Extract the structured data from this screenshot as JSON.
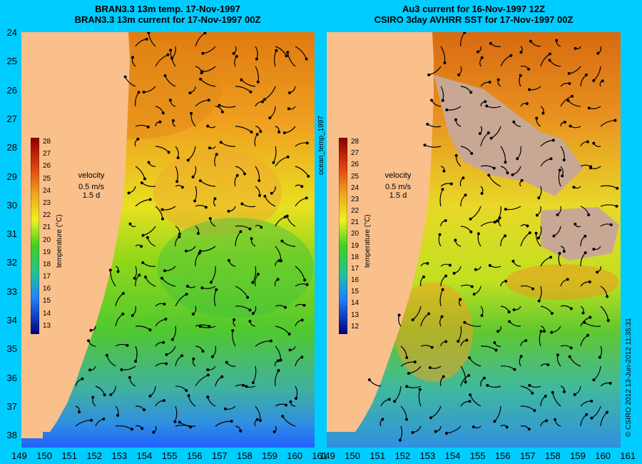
{
  "left_panel": {
    "title_line1": "BRAN3.3 13m temp. 17-Nov-1997",
    "title_line2": "BRAN3.3 13m current for 17-Nov-1997 00Z",
    "colorbar_ticks": [
      "28",
      "27",
      "26",
      "25",
      "24",
      "23",
      "22",
      "21",
      "20",
      "19",
      "18",
      "17",
      "16",
      "15",
      "14",
      "13"
    ],
    "colorbar_label": "temperature (°C)",
    "velocity_title": "velocity",
    "velocity_scale": "0.5 m/s",
    "velocity_duration": "1.5 d"
  },
  "right_panel": {
    "title_line1": "Au3 current for 16-Nov-1997 12Z",
    "title_line2": "CSIRO 3day AVHRR SST for 17-Nov-1997 00Z",
    "colorbar_ticks": [
      "28",
      "27",
      "26",
      "25",
      "24",
      "23",
      "22",
      "21",
      "20",
      "19",
      "18",
      "17",
      "16",
      "15",
      "14",
      "13",
      "12"
    ],
    "colorbar_label": "temperature (°C)",
    "velocity_title": "velocity",
    "velocity_scale": "0.5 m/s",
    "velocity_duration": "1.5 d"
  },
  "latitude_labels": [
    "24",
    "25",
    "26",
    "27",
    "28",
    "29",
    "30",
    "31",
    "32",
    "33",
    "34",
    "35",
    "36",
    "37",
    "38"
  ],
  "longitude_labels": [
    "149",
    "150",
    "151",
    "152",
    "153",
    "154",
    "155",
    "156",
    "157",
    "158",
    "159",
    "160",
    "161"
  ],
  "side_labels": {
    "middle": "ocean_temp_1997",
    "right": "© CSIRO 2012  13-Jun-2012 11:35:31"
  },
  "colors": {
    "background": "#00ccff",
    "land": "#f9c08c",
    "cloud": "#c8a894"
  }
}
